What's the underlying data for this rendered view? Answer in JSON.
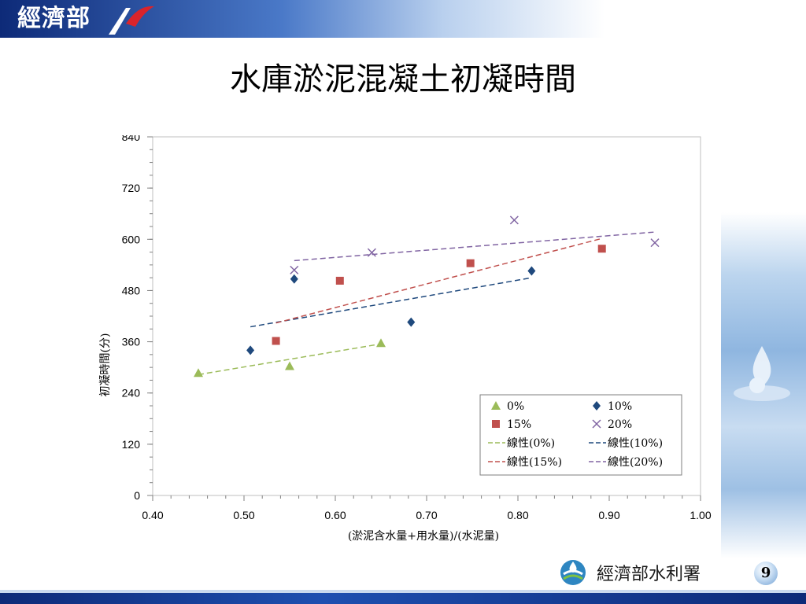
{
  "header": {
    "ministry": "經濟部",
    "title": "水庫淤泥混凝土初凝時間"
  },
  "footer": {
    "org": "經濟部水利署",
    "page": "9"
  },
  "colors": {
    "s0": "#9bbb59",
    "s10": "#1f497d",
    "s15": "#c0504d",
    "s20": "#8064a2"
  },
  "chart_data": {
    "type": "scatter",
    "title": "",
    "xlabel": "(淤泥含水量+用水量)/(水泥量)",
    "ylabel": "初凝時間(分)",
    "xlim": [
      0.4,
      1.0
    ],
    "ylim": [
      0,
      840
    ],
    "x_ticks": [
      "0.40",
      "0.50",
      "0.60",
      "0.70",
      "0.80",
      "0.90",
      "1.00"
    ],
    "y_ticks": [
      "0",
      "120",
      "240",
      "360",
      "480",
      "600",
      "720",
      "840"
    ],
    "legend_position": "bottom-right",
    "series": [
      {
        "name": "0%",
        "marker": "triangle",
        "color": "#9bbb59",
        "points": [
          [
            0.45,
            287
          ],
          [
            0.55,
            303
          ],
          [
            0.65,
            357
          ]
        ],
        "trend": {
          "name": "線性(0%)",
          "from": [
            0.45,
            283
          ],
          "to": [
            0.65,
            355
          ]
        }
      },
      {
        "name": "10%",
        "marker": "diamond",
        "color": "#1f497d",
        "points": [
          [
            0.507,
            340
          ],
          [
            0.555,
            507
          ],
          [
            0.683,
            406
          ],
          [
            0.815,
            526
          ]
        ],
        "trend": {
          "name": "線性(10%)",
          "from": [
            0.507,
            395
          ],
          "to": [
            0.815,
            510
          ]
        }
      },
      {
        "name": "15%",
        "marker": "square",
        "color": "#c0504d",
        "points": [
          [
            0.535,
            362
          ],
          [
            0.605,
            503
          ],
          [
            0.748,
            544
          ],
          [
            0.892,
            578
          ]
        ],
        "trend": {
          "name": "線性(15%)",
          "from": [
            0.535,
            404
          ],
          "to": [
            0.892,
            602
          ]
        }
      },
      {
        "name": "20%",
        "marker": "x",
        "color": "#8064a2",
        "points": [
          [
            0.555,
            528
          ],
          [
            0.64,
            569
          ],
          [
            0.796,
            645
          ],
          [
            0.95,
            592
          ]
        ],
        "trend": {
          "name": "線性(20%)",
          "from": [
            0.555,
            550
          ],
          "to": [
            0.95,
            617
          ]
        }
      }
    ]
  }
}
